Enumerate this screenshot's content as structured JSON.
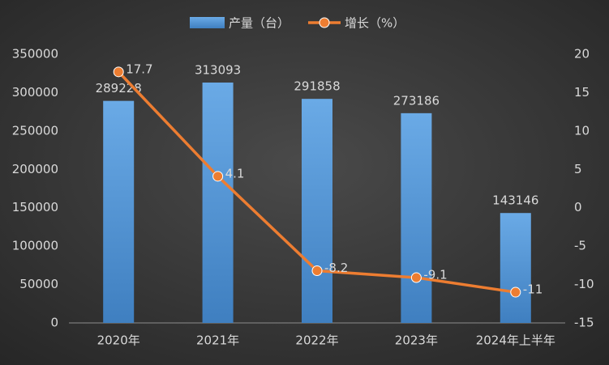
{
  "chart_data": {
    "type": "bar-line",
    "categories": [
      "2020年",
      "2021年",
      "2022年",
      "2023年",
      "2024年上半年"
    ],
    "series": [
      {
        "name": "产量（台）",
        "type": "bar",
        "color": "#5b9bd5",
        "values": [
          289228,
          313093,
          291858,
          273186,
          143146
        ]
      },
      {
        "name": "增长（%）",
        "type": "line",
        "axis": "y2",
        "color": "#ed7d31",
        "values": [
          17.7,
          4.1,
          -8.2,
          -9.1,
          -11
        ]
      }
    ],
    "ylim": [
      0,
      350000
    ],
    "yticks": [
      0,
      50000,
      100000,
      150000,
      200000,
      250000,
      300000,
      350000
    ],
    "y2lim": [
      -15,
      20
    ],
    "y2ticks": [
      -15,
      -10,
      -5,
      0,
      5,
      10,
      15,
      20
    ],
    "grid": false
  }
}
